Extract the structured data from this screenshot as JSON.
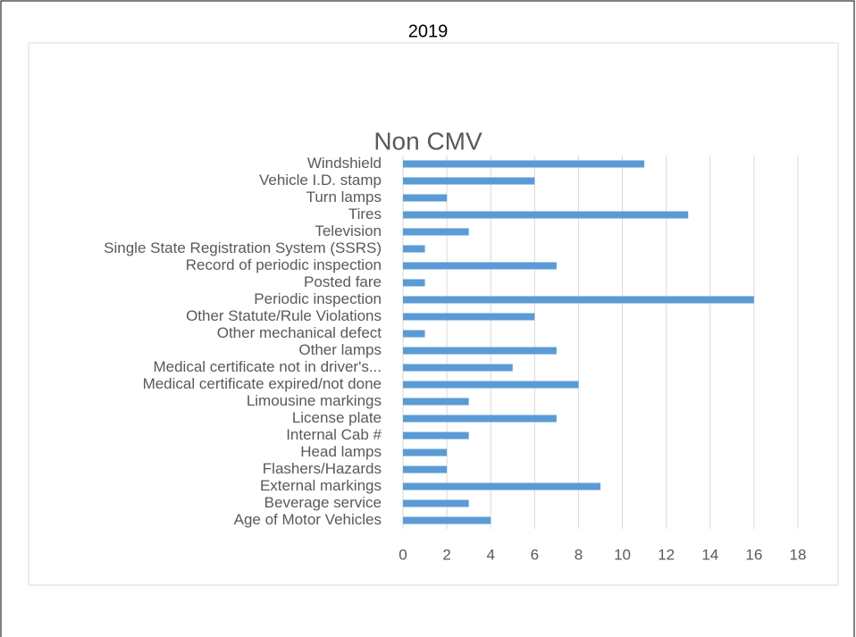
{
  "page_title": "2019",
  "chart_data": {
    "type": "bar",
    "orientation": "horizontal",
    "title": "Non CMV",
    "categories": [
      "Windshield",
      "Vehicle I.D. stamp",
      "Turn lamps",
      "Tires",
      "Television",
      "Single State Registration System (SSRS)",
      "Record of periodic inspection",
      "Posted fare",
      "Periodic inspection",
      "Other Statute/Rule Violations",
      "Other mechanical defect",
      "Other lamps",
      "Medical certificate not in driver's...",
      "Medical certificate expired/not done",
      "Limousine markings",
      "License plate",
      "Internal Cab #",
      "Head lamps",
      "Flashers/Hazards",
      "External markings",
      "Beverage service",
      "Age of Motor Vehicles"
    ],
    "values": [
      11,
      6,
      2,
      13,
      3,
      1,
      7,
      1,
      16,
      6,
      1,
      7,
      5,
      8,
      3,
      7,
      3,
      2,
      2,
      9,
      3,
      4
    ],
    "color": "#5b9bd5",
    "xlim": [
      0,
      18
    ],
    "xticks": [
      0,
      2,
      4,
      6,
      8,
      10,
      12,
      14,
      16,
      18
    ],
    "grid": true
  }
}
